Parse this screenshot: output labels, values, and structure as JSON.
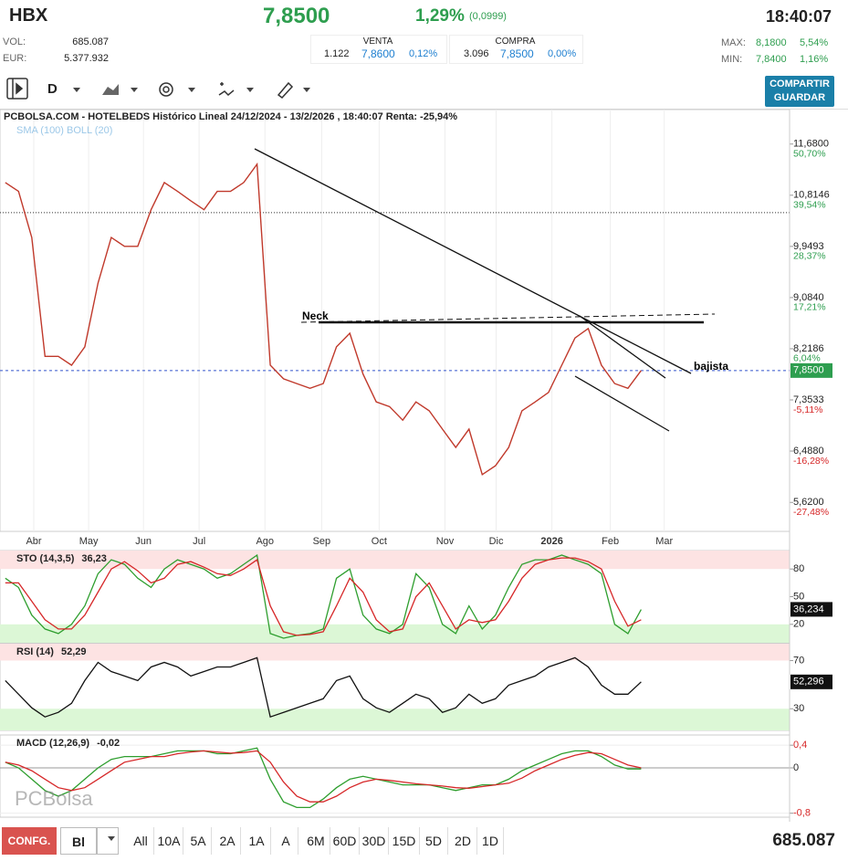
{
  "header": {
    "ticker": "HBX",
    "price": "7,8500",
    "change_pct": "1,29%",
    "change_abs": "(0,0999)",
    "time": "18:40:07",
    "vol_label": "VOL:",
    "vol": "685.087",
    "eur_label": "EUR:",
    "eur": "5.377.932",
    "venta_label": "VENTA",
    "venta_qty": "1.122",
    "venta_price": "7,8600",
    "venta_pct": "0,12%",
    "compra_label": "COMPRA",
    "compra_qty": "3.096",
    "compra_price": "7,8500",
    "compra_pct": "0,00%",
    "max_label": "MAX:",
    "max": "8,1800",
    "max_pct": "5,54%",
    "min_label": "MIN:",
    "min": "7,8400",
    "min_pct": "1,16%"
  },
  "toolbar": {
    "period": "D",
    "share": "COMPARTIR",
    "save": "GUARDAR"
  },
  "chart_data": [
    {
      "type": "line",
      "title": "PCBOLSA.COM - HOTELBEDS Histórico Lineal 24/12/2024 - 13/2/2026 , 18:40:07 Renta: -25,94%",
      "legend": "SMA (100) BOLL (20)",
      "series": [
        {
          "color": "#c0392b",
          "values": [
            11.03,
            10.88,
            10.1,
            8.09,
            8.09,
            7.94,
            8.25,
            9.33,
            10.1,
            9.95,
            9.95,
            10.57,
            11.03,
            10.88,
            10.72,
            10.57,
            10.88,
            10.88,
            11.03,
            11.34,
            7.94,
            7.71,
            7.63,
            7.55,
            7.63,
            8.25,
            8.48,
            7.79,
            7.32,
            7.24,
            7.01,
            7.32,
            7.17,
            6.86,
            6.55,
            6.86,
            6.09,
            6.24,
            6.55,
            7.17,
            7.32,
            7.48,
            7.94,
            8.4,
            8.56,
            7.94,
            7.63,
            7.55,
            7.85
          ]
        }
      ],
      "xlim": [
        -0.4,
        59.2
      ],
      "xticks": [
        {
          "value": 2.15,
          "label": "Abr"
        },
        {
          "value": 6.29,
          "label": "May"
        },
        {
          "value": 10.43,
          "label": "Jun"
        },
        {
          "value": 14.63,
          "label": "Jul"
        },
        {
          "value": 19.6,
          "label": "Ago"
        },
        {
          "value": 23.88,
          "label": "Sep"
        },
        {
          "value": 28.22,
          "label": "Oct"
        },
        {
          "value": 33.19,
          "label": "Nov"
        },
        {
          "value": 37.05,
          "label": "Dic"
        },
        {
          "value": 41.26,
          "label": "2026"
        },
        {
          "value": 45.67,
          "label": "Feb"
        },
        {
          "value": 49.74,
          "label": "Mar"
        }
      ],
      "ylim": [
        5.13,
        11.8
      ],
      "yticks": [
        {
          "value": 11.68,
          "label": "11,6800"
        },
        {
          "value": 10.8146,
          "label": "10,8146"
        },
        {
          "value": 9.9493,
          "label": "9,9493"
        },
        {
          "value": 9.084,
          "label": "9,0840"
        },
        {
          "value": 8.2186,
          "label": "8,2186"
        },
        {
          "value": 7.3533,
          "label": "7,3533"
        },
        {
          "value": 6.488,
          "label": "6,4880"
        },
        {
          "value": 5.62,
          "label": "5,6200"
        }
      ],
      "ytick_notes": [
        "50,70%",
        "39,54%",
        "28,37%",
        "17,21%",
        "6,04%",
        "-5,11%",
        "-16,28%",
        "-27,48%"
      ],
      "last": {
        "value": 7.85,
        "label": "7,8500"
      },
      "ref_line": 10.52,
      "annotations": [
        "Neck",
        "bajista"
      ],
      "grid": true
    },
    {
      "type": "line",
      "title": "STO (14,3,5)",
      "value_text": "36,23",
      "series": [
        {
          "color": "#2e9e2e",
          "values": [
            70,
            60,
            30,
            15,
            10,
            20,
            40,
            75,
            90,
            85,
            70,
            60,
            80,
            90,
            85,
            80,
            70,
            75,
            85,
            95,
            10,
            5,
            8,
            10,
            15,
            70,
            80,
            30,
            15,
            10,
            20,
            75,
            60,
            20,
            10,
            40,
            15,
            30,
            60,
            85,
            90,
            90,
            95,
            90,
            85,
            75,
            20,
            10,
            36
          ]
        },
        {
          "color": "#d62728",
          "values": [
            65,
            65,
            45,
            25,
            15,
            15,
            30,
            55,
            80,
            88,
            78,
            65,
            70,
            85,
            88,
            82,
            75,
            73,
            80,
            90,
            40,
            12,
            8,
            9,
            12,
            40,
            70,
            55,
            25,
            12,
            15,
            50,
            65,
            40,
            15,
            25,
            22,
            25,
            45,
            70,
            85,
            90,
            92,
            92,
            88,
            80,
            45,
            18,
            25
          ]
        }
      ],
      "ylim": [
        0,
        100
      ],
      "yticks": [
        80,
        50,
        20
      ],
      "zones": true,
      "last": {
        "value": 36.234,
        "label": "36,234"
      }
    },
    {
      "type": "line",
      "title": "RSI (14)",
      "value_text": "52,29",
      "series": [
        {
          "color": "#111111",
          "values": [
            53.4,
            42.1,
            30.8,
            23.2,
            27.0,
            34.5,
            53.4,
            68.5,
            60.9,
            57.2,
            53.4,
            64.7,
            68.5,
            64.7,
            57.2,
            60.9,
            64.7,
            64.7,
            68.5,
            72.3,
            23.2,
            27.0,
            30.8,
            34.5,
            38.3,
            53.4,
            57.2,
            38.3,
            30.8,
            27.0,
            34.5,
            42.1,
            38.3,
            27.0,
            30.8,
            42.1,
            34.5,
            38.3,
            49.6,
            53.4,
            57.2,
            64.7,
            68.5,
            72.3,
            64.7,
            49.6,
            42.1,
            42.1,
            52.3
          ]
        }
      ],
      "ylim": [
        12,
        84
      ],
      "yticks": [
        70,
        30
      ],
      "zones": true,
      "last": {
        "value": 52.296,
        "label": "52,296"
      }
    },
    {
      "type": "line",
      "title": "MACD (12,26,9)",
      "value_text": "-0,02",
      "series": [
        {
          "color": "#2e9e2e",
          "values": [
            0.1,
            0.0,
            -0.2,
            -0.4,
            -0.5,
            -0.4,
            -0.2,
            0.0,
            0.15,
            0.2,
            0.2,
            0.2,
            0.25,
            0.3,
            0.3,
            0.3,
            0.25,
            0.25,
            0.3,
            0.35,
            -0.2,
            -0.6,
            -0.7,
            -0.7,
            -0.55,
            -0.35,
            -0.2,
            -0.15,
            -0.2,
            -0.25,
            -0.3,
            -0.3,
            -0.3,
            -0.35,
            -0.4,
            -0.35,
            -0.3,
            -0.3,
            -0.2,
            -0.05,
            0.05,
            0.15,
            0.25,
            0.3,
            0.3,
            0.2,
            0.05,
            -0.02,
            -0.02
          ]
        },
        {
          "color": "#d62728",
          "values": [
            0.1,
            0.05,
            -0.05,
            -0.2,
            -0.35,
            -0.4,
            -0.35,
            -0.2,
            -0.05,
            0.1,
            0.15,
            0.2,
            0.2,
            0.25,
            0.28,
            0.3,
            0.28,
            0.26,
            0.27,
            0.3,
            0.1,
            -0.25,
            -0.5,
            -0.6,
            -0.6,
            -0.5,
            -0.35,
            -0.25,
            -0.2,
            -0.22,
            -0.25,
            -0.28,
            -0.3,
            -0.32,
            -0.35,
            -0.36,
            -0.33,
            -0.3,
            -0.27,
            -0.18,
            -0.05,
            0.05,
            0.15,
            0.22,
            0.27,
            0.25,
            0.15,
            0.05,
            0.0
          ]
        }
      ],
      "ylim": [
        -0.87,
        0.58
      ],
      "yticks": [
        {
          "value": 0.4,
          "label": "0,4"
        },
        0,
        {
          "value": -0.8,
          "label": "-0,8"
        }
      ],
      "watermark": "PCBolsa"
    }
  ],
  "footer": {
    "config": "CONFG.",
    "mode": "Bl",
    "ranges": [
      "All",
      "10A",
      "5A",
      "2A",
      "1A",
      "A",
      "6M",
      "60D",
      "30D",
      "15D",
      "5D",
      "2D",
      "1D"
    ],
    "volume": "685.087"
  }
}
